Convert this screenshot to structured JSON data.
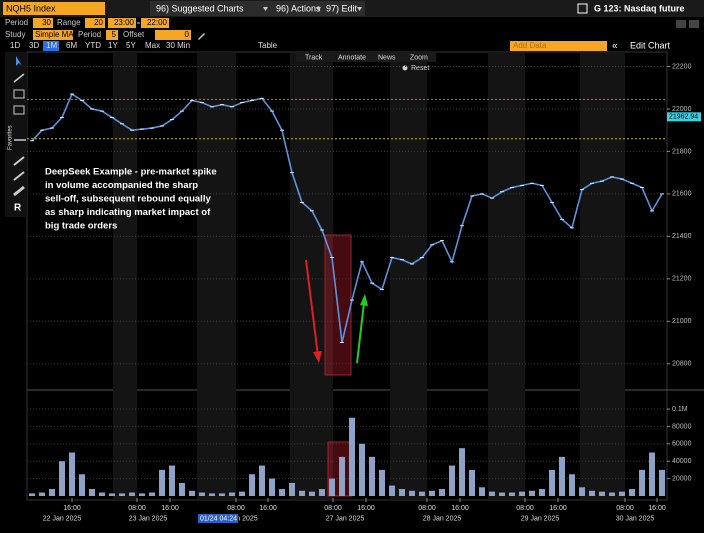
{
  "toolbar": {
    "security": "NQH5 Index",
    "menus": [
      "96) Suggested Charts",
      "96) Actions",
      "97) Edit"
    ],
    "function": "G 123: Nasdaq future"
  },
  "settings": {
    "period_label": "Period",
    "period": "30",
    "range_label": "Range",
    "range": "20",
    "start": "23:00",
    "end": "22:00",
    "study_label": "Study",
    "study": "Simple MA",
    "study_period_label": "Period",
    "study_period": "5",
    "offset_label": "Offset",
    "offset": "0"
  },
  "timeframes": [
    "1D",
    "3D",
    "1M",
    "6M",
    "YTD",
    "1Y",
    "5Y",
    "Max",
    "30 Min",
    "Table"
  ],
  "selected_timeframe": 2,
  "add_data": "Add Data",
  "edit_chart": "Edit Chart",
  "sidebar_label": "Favorites",
  "chart_tools": [
    "Track",
    "Annotate",
    "News",
    "Zoom"
  ],
  "reset": "Reset",
  "annotation": [
    "DeepSeek Example - pre-market spike",
    "in volume accompanied the sharp",
    "sell-off, subsequent rebound equally",
    "as sharp indicating market impact of",
    "big trade orders"
  ],
  "cursor_label": "01/24 04:24",
  "chart_data": [
    {
      "type": "line",
      "color": "#5b93dc",
      "values": [
        21850,
        21900,
        21910,
        21960,
        22070,
        22040,
        22000,
        21990,
        21960,
        21930,
        21900,
        21905,
        21910,
        21920,
        21950,
        21990,
        22040,
        22030,
        22010,
        22020,
        22010,
        22030,
        22040,
        22050,
        21990,
        21900,
        21700,
        21560,
        21520,
        21430,
        21300,
        20900,
        21100,
        21280,
        21180,
        21150,
        21300,
        21290,
        21270,
        21300,
        21360,
        21380,
        21280,
        21450,
        21590,
        21600,
        21580,
        21610,
        21630,
        21640,
        21650,
        21640,
        21560,
        21480,
        21440,
        21620,
        21650,
        21660,
        21680,
        21670,
        21650,
        21630,
        21520,
        21600
      ],
      "xlim": [
        -0.5,
        63.5
      ],
      "ylim": [
        20700,
        22240
      ],
      "yticks": [
        20800,
        21000,
        21200,
        21400,
        21600,
        21800,
        22000,
        22200
      ],
      "grid": true,
      "last_price": 21962.94,
      "reference_lines": [
        {
          "value": 22045,
          "color": "#c87d1e"
        },
        {
          "value": 21860,
          "color": "#c8b41e"
        }
      ]
    },
    {
      "type": "bar",
      "color": "#8ea2c8",
      "values": [
        3000,
        4000,
        8000,
        40000,
        50000,
        25000,
        8000,
        4000,
        3000,
        3000,
        4000,
        3000,
        4000,
        30000,
        35000,
        15000,
        6000,
        4000,
        3000,
        3000,
        4000,
        5000,
        25000,
        35000,
        20000,
        8000,
        15000,
        6000,
        5000,
        8000,
        20000,
        45000,
        90000,
        60000,
        45000,
        30000,
        12000,
        8000,
        6000,
        5000,
        6000,
        8000,
        35000,
        55000,
        30000,
        10000,
        5000,
        4000,
        4000,
        5000,
        6000,
        8000,
        30000,
        45000,
        25000,
        10000,
        6000,
        5000,
        4000,
        5000,
        8000,
        30000,
        50000,
        30000
      ],
      "xlim": [
        -0.5,
        63.5
      ],
      "ylim": [
        0,
        112000
      ],
      "yticks": [
        20000,
        40000,
        60000,
        80000,
        {
          "value": 100000,
          "label": "0.1M"
        }
      ],
      "grid": true,
      "xticks": [
        {
          "value": 4,
          "label": "16:00"
        },
        {
          "value": 10.5,
          "label": "08:00"
        },
        {
          "value": 13.8,
          "label": "16:00"
        },
        {
          "value": 20.4,
          "label": "08:00"
        },
        {
          "value": 23.6,
          "label": "16:00"
        },
        {
          "value": 30.1,
          "label": "08:00"
        },
        {
          "value": 33.4,
          "label": "16:00"
        },
        {
          "value": 39.5,
          "label": "08:00"
        },
        {
          "value": 42.8,
          "label": "16:00"
        },
        {
          "value": 49.3,
          "label": "08:00"
        },
        {
          "value": 52.6,
          "label": "16:00"
        },
        {
          "value": 59.3,
          "label": "08:00"
        },
        {
          "value": 62.5,
          "label": "16:00"
        }
      ],
      "xdates": [
        {
          "value": 3,
          "label": "22 Jan 2025"
        },
        {
          "value": 11.6,
          "label": "23 Jan 2025"
        },
        {
          "value": 21.3,
          "label": "an 2025"
        },
        {
          "value": 31.3,
          "label": "27 Jan 2025"
        },
        {
          "value": 41,
          "label": "28 Jan 2025"
        },
        {
          "value": 50.8,
          "label": "29 Jan 2025"
        },
        {
          "value": 60.3,
          "label": "30 Jan 2025"
        }
      ]
    }
  ]
}
